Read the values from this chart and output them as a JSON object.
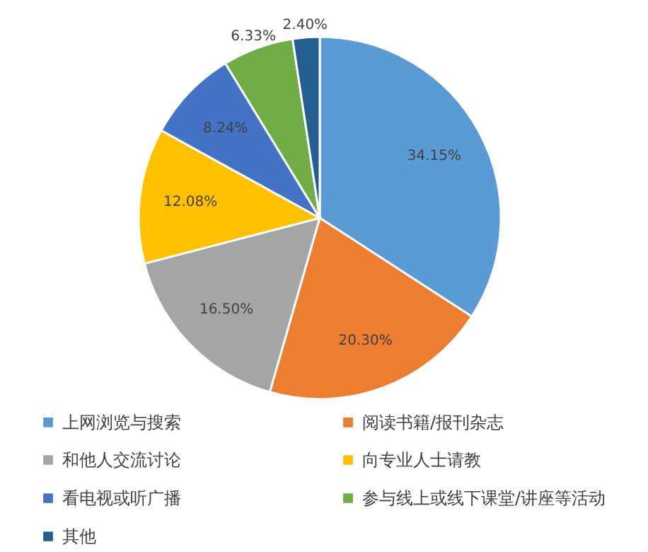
{
  "chart_data": {
    "type": "pie",
    "categories": [
      "上网浏览与搜索",
      "阅读书籍/报刊杂志",
      "和他人交流讨论",
      "向专业人士请教",
      "看电视或听广播",
      "参与线上或线下课堂/讲座等活动",
      "其他"
    ],
    "values": [
      34.15,
      20.3,
      16.5,
      12.08,
      8.24,
      6.33,
      2.4
    ],
    "value_labels": [
      "34.15%",
      "20.30%",
      "16.50%",
      "12.08%",
      "8.24%",
      "6.33%",
      "2.40%"
    ],
    "colors": [
      "#5b9bd5",
      "#ed7d31",
      "#a5a5a5",
      "#ffc000",
      "#4472c4",
      "#70ad47",
      "#255e91"
    ],
    "legend": "bottom"
  }
}
